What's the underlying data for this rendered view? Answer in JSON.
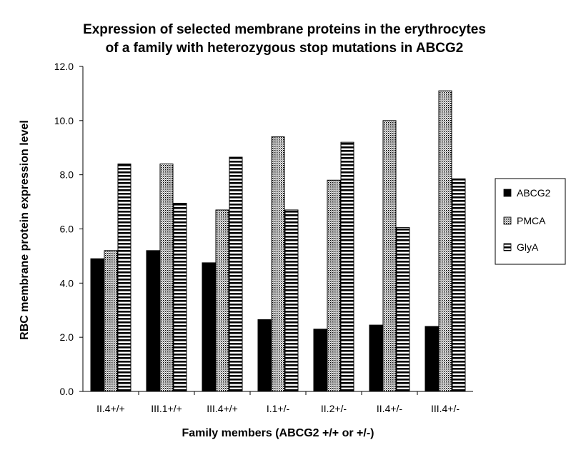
{
  "chart_data": {
    "type": "bar",
    "title": "Expression of selected membrane proteins in the erythrocytes of a family with heterozygous stop mutations in ABCG2",
    "title_lines": [
      "Expression of selected membrane proteins in the erythrocytes",
      "of a family with heterozygous stop mutations in ABCG2"
    ],
    "xlabel": "Family members (ABCG2 +/+ or +/-)",
    "ylabel": "RBC membrane protein expression level",
    "categories": [
      "II.4+/+",
      "III.1+/+",
      "III.4+/+",
      "I.1+/-",
      "II.2+/-",
      "II.4+/-",
      "III.4+/-"
    ],
    "series": [
      {
        "name": "ABCG2",
        "pattern": "solid",
        "color": "#000000",
        "values": [
          4.9,
          5.2,
          4.75,
          2.65,
          2.3,
          2.45,
          2.4
        ]
      },
      {
        "name": "PMCA",
        "pattern": "dots",
        "color": "#000000",
        "values": [
          5.2,
          8.4,
          6.7,
          9.4,
          7.8,
          10.0,
          11.1
        ]
      },
      {
        "name": "GlyA",
        "pattern": "horizontal-stripes",
        "color": "#000000",
        "values": [
          8.4,
          6.95,
          8.65,
          6.7,
          9.2,
          6.05,
          7.85
        ]
      }
    ],
    "ylim": [
      0,
      12
    ],
    "yticks": [
      "0.0",
      "2.0",
      "4.0",
      "6.0",
      "8.0",
      "10.0",
      "12.0"
    ],
    "grid": false,
    "legend_position": "right"
  }
}
